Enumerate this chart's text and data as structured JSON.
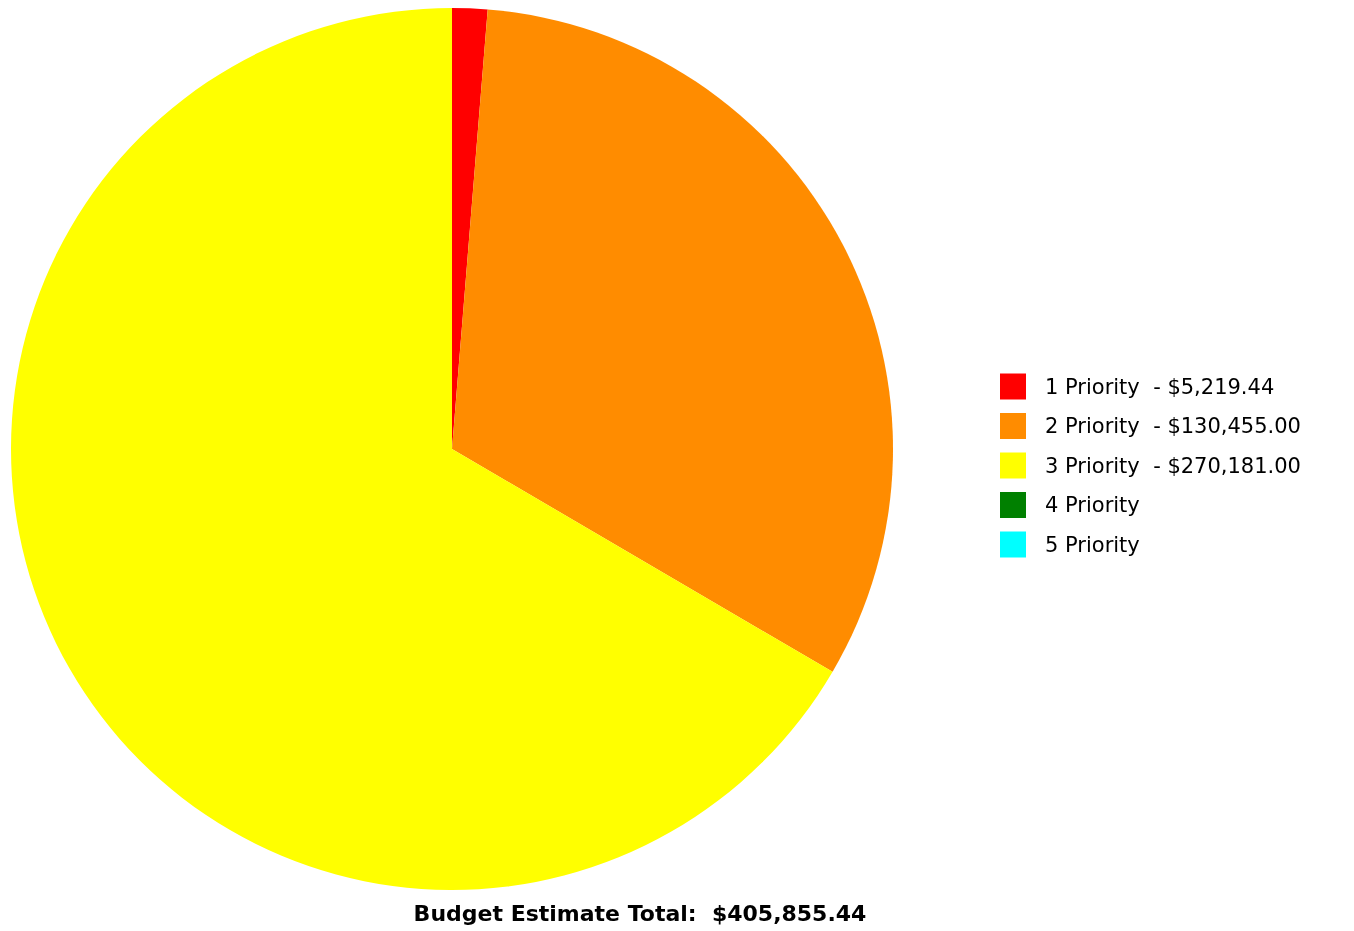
{
  "chart_data": {
    "type": "pie",
    "title": "Budget Estimate Total:  $405,855.44",
    "categories": [
      "1 Priority  - $5,219.44",
      "2 Priority  - $130,455.00",
      "3 Priority  - $270,181.00",
      "4 Priority",
      "5 Priority"
    ],
    "values": [
      1.29,
      32.14,
      66.57,
      0,
      0
    ],
    "colors": [
      "#ff0000",
      "#ff8c00",
      "#ffff00",
      "#008000",
      "#00ffff"
    ],
    "legend": "right"
  }
}
